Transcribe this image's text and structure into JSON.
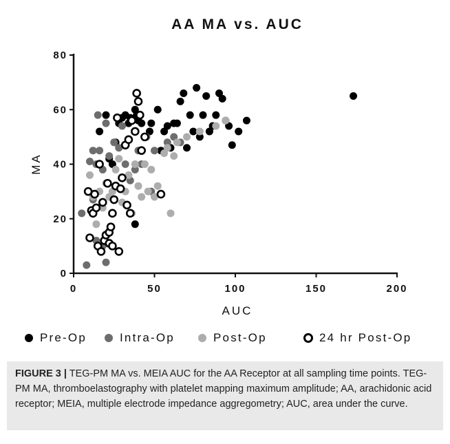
{
  "chart_data": {
    "type": "scatter",
    "title": "AA MA vs. AUC",
    "xlabel": "AUC",
    "ylabel": "MA",
    "xlim": [
      0,
      200
    ],
    "ylim": [
      0,
      80
    ],
    "xticks": [
      0,
      50,
      100,
      150,
      200
    ],
    "yticks": [
      0,
      20,
      40,
      60,
      80
    ],
    "grid": false,
    "legend_position": "bottom",
    "series": [
      {
        "name": "Pre-Op",
        "marker": "filled-circle",
        "color": "#000000",
        "points": [
          [
            16,
            52
          ],
          [
            20,
            58
          ],
          [
            22,
            42
          ],
          [
            24,
            40
          ],
          [
            26,
            48
          ],
          [
            28,
            55
          ],
          [
            30,
            57
          ],
          [
            32,
            58
          ],
          [
            34,
            55
          ],
          [
            35,
            57
          ],
          [
            38,
            60
          ],
          [
            39,
            58
          ],
          [
            40,
            56
          ],
          [
            42,
            55
          ],
          [
            45,
            50
          ],
          [
            47,
            52
          ],
          [
            48,
            55
          ],
          [
            52,
            60
          ],
          [
            54,
            45
          ],
          [
            56,
            52
          ],
          [
            58,
            54
          ],
          [
            60,
            46
          ],
          [
            62,
            55
          ],
          [
            64,
            55
          ],
          [
            66,
            63
          ],
          [
            68,
            66
          ],
          [
            70,
            46
          ],
          [
            72,
            58
          ],
          [
            74,
            52
          ],
          [
            76,
            68
          ],
          [
            78,
            50
          ],
          [
            80,
            58
          ],
          [
            82,
            65
          ],
          [
            84,
            52
          ],
          [
            86,
            54
          ],
          [
            88,
            58
          ],
          [
            90,
            66
          ],
          [
            92,
            64
          ],
          [
            94,
            56
          ],
          [
            96,
            54
          ],
          [
            98,
            47
          ],
          [
            102,
            52
          ],
          [
            107,
            56
          ],
          [
            38,
            18
          ],
          [
            173,
            65
          ]
        ]
      },
      {
        "name": "Intra-Op",
        "marker": "filled-circle",
        "color": "#6d6d6d",
        "points": [
          [
            5,
            22
          ],
          [
            8,
            3
          ],
          [
            10,
            41
          ],
          [
            12,
            45
          ],
          [
            14,
            40
          ],
          [
            15,
            58
          ],
          [
            16,
            45
          ],
          [
            18,
            38
          ],
          [
            20,
            55
          ],
          [
            22,
            43
          ],
          [
            25,
            48
          ],
          [
            28,
            46
          ],
          [
            30,
            54
          ],
          [
            32,
            40
          ],
          [
            35,
            34
          ],
          [
            38,
            38
          ],
          [
            40,
            45
          ],
          [
            42,
            40
          ],
          [
            45,
            50
          ],
          [
            48,
            30
          ],
          [
            50,
            45
          ],
          [
            58,
            48
          ],
          [
            62,
            50
          ],
          [
            66,
            48
          ],
          [
            20,
            4
          ],
          [
            14,
            12
          ],
          [
            12,
            27
          ],
          [
            18,
            10
          ]
        ]
      },
      {
        "name": "Post-Op",
        "marker": "filled-circle",
        "color": "#adadad",
        "points": [
          [
            10,
            36
          ],
          [
            12,
            28
          ],
          [
            14,
            18
          ],
          [
            16,
            30
          ],
          [
            18,
            24
          ],
          [
            20,
            33
          ],
          [
            22,
            28
          ],
          [
            24,
            30
          ],
          [
            26,
            38
          ],
          [
            28,
            42
          ],
          [
            30,
            26
          ],
          [
            32,
            30
          ],
          [
            34,
            36
          ],
          [
            36,
            22
          ],
          [
            38,
            40
          ],
          [
            40,
            32
          ],
          [
            42,
            28
          ],
          [
            44,
            40
          ],
          [
            46,
            30
          ],
          [
            48,
            38
          ],
          [
            50,
            28
          ],
          [
            52,
            32
          ],
          [
            56,
            44
          ],
          [
            58,
            46
          ],
          [
            60,
            22
          ],
          [
            62,
            43
          ],
          [
            64,
            48
          ],
          [
            70,
            50
          ],
          [
            78,
            52
          ],
          [
            88,
            54
          ],
          [
            94,
            56
          ]
        ]
      },
      {
        "name": "24 hr Post-Op",
        "marker": "open-circle",
        "color": "#000000",
        "points": [
          [
            9,
            30
          ],
          [
            10,
            13
          ],
          [
            11,
            23
          ],
          [
            12,
            22
          ],
          [
            13,
            29
          ],
          [
            14,
            24
          ],
          [
            15,
            10
          ],
          [
            16,
            40
          ],
          [
            17,
            8
          ],
          [
            18,
            26
          ],
          [
            19,
            12
          ],
          [
            20,
            14
          ],
          [
            21,
            33
          ],
          [
            22,
            15
          ],
          [
            23,
            17
          ],
          [
            24,
            22
          ],
          [
            25,
            27
          ],
          [
            26,
            32
          ],
          [
            27,
            57
          ],
          [
            28,
            8
          ],
          [
            29,
            31
          ],
          [
            30,
            35
          ],
          [
            32,
            47
          ],
          [
            33,
            25
          ],
          [
            34,
            49
          ],
          [
            35,
            22
          ],
          [
            36,
            56
          ],
          [
            38,
            52
          ],
          [
            39,
            66
          ],
          [
            40,
            63
          ],
          [
            41,
            58
          ],
          [
            42,
            45
          ],
          [
            44,
            50
          ],
          [
            54,
            29
          ],
          [
            22,
            11
          ],
          [
            24,
            10
          ]
        ]
      }
    ]
  },
  "legend": {
    "items": [
      {
        "label": "Pre-Op",
        "marker": "filled-circle",
        "color": "#000000"
      },
      {
        "label": "Intra-Op",
        "marker": "filled-circle",
        "color": "#6d6d6d"
      },
      {
        "label": "Post-Op",
        "marker": "filled-circle",
        "color": "#adadad"
      },
      {
        "label": "24 hr Post-Op",
        "marker": "open-circle",
        "color": "#000000"
      }
    ]
  },
  "caption": {
    "label": "FIGURE 3 |",
    "text": " TEG-PM MA vs. MEIA AUC for the AA Receptor at all sampling time points. TEG-PM MA, thromboelastography with platelet mapping maximum amplitude; AA, arachidonic acid receptor; MEIA, multiple electrode impedance aggregometry; AUC, area under the curve."
  }
}
